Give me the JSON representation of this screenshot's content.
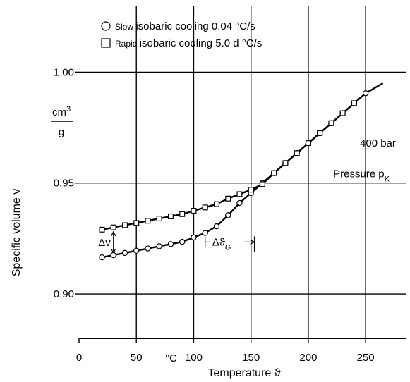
{
  "chart_data": {
    "type": "line",
    "title": "",
    "xlabel": "Temperature ϑ",
    "ylabel": "Specific volume v",
    "y_unit_numerator": "cm3",
    "y_unit_denominator": "g",
    "x_unit": "°C",
    "xlim": [
      0,
      285
    ],
    "ylim": [
      0.88,
      1.03
    ],
    "x_ticks": [
      0,
      50,
      100,
      150,
      200,
      250
    ],
    "x_tick_labels": [
      "0",
      "50",
      "100",
      "150",
      "200",
      "250"
    ],
    "y_ticks": [
      0.9,
      0.95,
      1.0
    ],
    "y_tick_labels": [
      "0.90",
      "0.95",
      "1.00"
    ],
    "grid": true,
    "legend": {
      "position": "top-left",
      "entries": [
        {
          "marker": "circle",
          "label_small": "Slow",
          "label": "isobaric cooling 0.04 °C/s"
        },
        {
          "marker": "square",
          "label_small": "Rapid",
          "label": "isobaric cooling 5.0 d °C/s"
        }
      ]
    },
    "series": [
      {
        "marker": "circle",
        "x": [
          20,
          30,
          40,
          50,
          60,
          70,
          80,
          90,
          100,
          110,
          120,
          130,
          140,
          150,
          160,
          170,
          180,
          190,
          200,
          210,
          220,
          230,
          240,
          250,
          265
        ],
        "y": [
          0.9165,
          0.9175,
          0.9185,
          0.9195,
          0.9205,
          0.9215,
          0.9225,
          0.9235,
          0.9255,
          0.9275,
          0.9305,
          0.9355,
          0.941,
          0.9455,
          0.95,
          0.9545,
          0.959,
          0.9635,
          0.968,
          0.9725,
          0.977,
          0.9815,
          0.986,
          0.9905,
          0.995
        ]
      },
      {
        "marker": "square",
        "x": [
          20,
          30,
          40,
          50,
          60,
          70,
          80,
          90,
          100,
          110,
          120,
          130,
          140,
          150,
          160,
          170,
          180,
          190,
          200,
          210,
          220,
          230,
          240
        ],
        "y": [
          0.929,
          0.93,
          0.931,
          0.932,
          0.933,
          0.934,
          0.935,
          0.936,
          0.9375,
          0.939,
          0.9405,
          0.943,
          0.945,
          0.947,
          0.9495,
          0.9545,
          0.959,
          0.9635,
          0.968,
          0.9725,
          0.977,
          0.9815,
          0.986
        ]
      }
    ],
    "annotations": {
      "pressure_line": {
        "y": 0.95,
        "label": "Pressure p",
        "sub": "K"
      },
      "pressure_value": {
        "label": "400 bar",
        "x": 245,
        "y": 0.968
      },
      "delta_v": {
        "label": "Δv",
        "x": 30,
        "y_top": 0.929,
        "y_bottom": 0.9175
      },
      "delta_theta": {
        "label": "Δϑ",
        "sub": "G",
        "x_from": 110,
        "x_to": 153,
        "y": 0.9215
      }
    }
  }
}
